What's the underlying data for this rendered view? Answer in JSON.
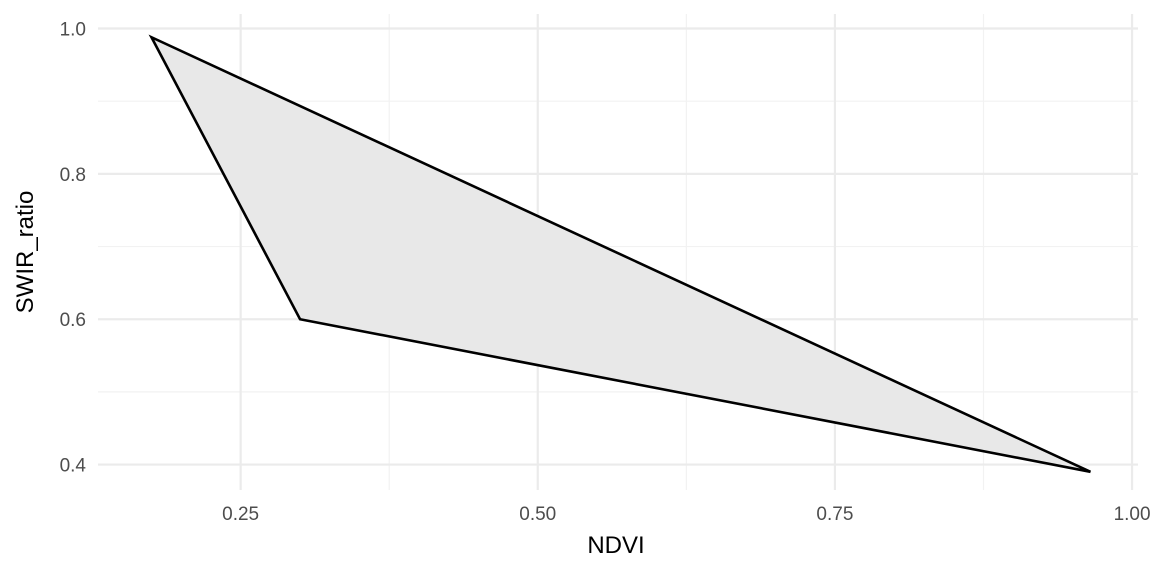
{
  "chart_data": {
    "type": "area",
    "xlabel": "NDVI",
    "ylabel": "SWIR_ratio",
    "xlim": [
      0.13,
      1.005
    ],
    "ylim": [
      0.365,
      1.02
    ],
    "x_ticks": [
      0.25,
      0.5,
      0.75,
      1.0
    ],
    "x_tick_labels": [
      "0.25",
      "0.50",
      "0.75",
      "1.00"
    ],
    "x_minor_ticks": [
      0.375,
      0.625,
      0.875
    ],
    "y_ticks": [
      0.4,
      0.6,
      0.8,
      1.0
    ],
    "y_tick_labels": [
      "0.4",
      "0.6",
      "0.8",
      "1.0"
    ],
    "y_minor_ticks": [
      0.5,
      0.7,
      0.9
    ],
    "grid": true,
    "series": [
      {
        "shape": "polygon",
        "points": [
          {
            "x": 0.175,
            "y": 0.988
          },
          {
            "x": 0.3,
            "y": 0.6
          },
          {
            "x": 0.965,
            "y": 0.39
          }
        ],
        "fill": "#e8e8e8",
        "stroke": "#000000"
      }
    ]
  }
}
